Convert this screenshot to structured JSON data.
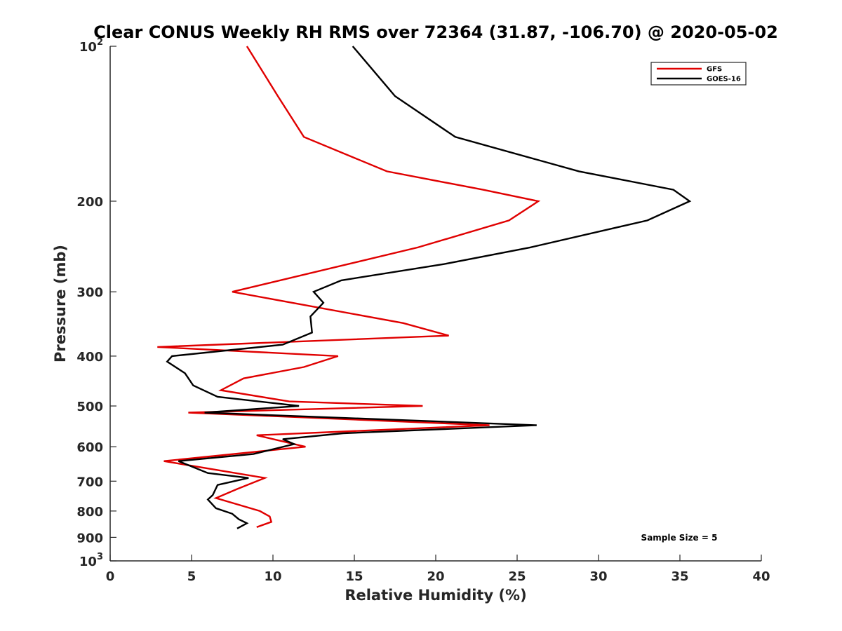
{
  "chart_data": {
    "type": "line",
    "title": "Clear CONUS Weekly RH RMS over 72364 (31.87, -106.70) @ 2020-05-02",
    "xlabel": "Relative Humidity (%)",
    "ylabel": "Pressure (mb)",
    "xlim": [
      0,
      40
    ],
    "ylim": [
      100,
      1000
    ],
    "y_scale": "log",
    "y_direction": "reversed",
    "x_ticks": [
      "0",
      "5",
      "10",
      "15",
      "20",
      "25",
      "30",
      "35",
      "40"
    ],
    "y_ticks": [
      {
        "value": 100,
        "label": "10",
        "exp": "2"
      },
      {
        "value": 200,
        "label": "200",
        "exp": ""
      },
      {
        "value": 300,
        "label": "300",
        "exp": ""
      },
      {
        "value": 400,
        "label": "400",
        "exp": ""
      },
      {
        "value": 500,
        "label": "500",
        "exp": ""
      },
      {
        "value": 600,
        "label": "600",
        "exp": ""
      },
      {
        "value": 700,
        "label": "700",
        "exp": ""
      },
      {
        "value": 800,
        "label": "800",
        "exp": ""
      },
      {
        "value": 900,
        "label": "900",
        "exp": ""
      },
      {
        "value": 1000,
        "label": "10",
        "exp": "3"
      }
    ],
    "legend_position": "top-right",
    "grid": false,
    "annotation": "Sample Size = 5",
    "series": [
      {
        "name": "GFS",
        "color": "#e00000",
        "points": [
          [
            8.4,
            100
          ],
          [
            10.3,
            125
          ],
          [
            11.9,
            150
          ],
          [
            17.0,
            175
          ],
          [
            22.9,
            190
          ],
          [
            26.3,
            200
          ],
          [
            24.5,
            218
          ],
          [
            18.9,
            246
          ],
          [
            7.5,
            300
          ],
          [
            18.0,
            345
          ],
          [
            20.8,
            365
          ],
          [
            2.9,
            384
          ],
          [
            14.0,
            400
          ],
          [
            11.9,
            420
          ],
          [
            8.2,
            442
          ],
          [
            6.8,
            466
          ],
          [
            11.0,
            490
          ],
          [
            19.2,
            500
          ],
          [
            4.8,
            515
          ],
          [
            23.3,
            545
          ],
          [
            9.0,
            570
          ],
          [
            12.0,
            600
          ],
          [
            3.3,
            640
          ],
          [
            9.5,
            690
          ],
          [
            7.8,
            725
          ],
          [
            6.5,
            755
          ],
          [
            9.2,
            800
          ],
          [
            9.8,
            820
          ],
          [
            9.9,
            840
          ],
          [
            9.0,
            860
          ]
        ]
      },
      {
        "name": "GOES-16",
        "color": "#000000",
        "points": [
          [
            14.9,
            100
          ],
          [
            17.5,
            125
          ],
          [
            21.2,
            150
          ],
          [
            28.8,
            175
          ],
          [
            34.6,
            190
          ],
          [
            35.6,
            200
          ],
          [
            33.0,
            218
          ],
          [
            25.8,
            246
          ],
          [
            20.5,
            265
          ],
          [
            14.2,
            285
          ],
          [
            12.5,
            300
          ],
          [
            13.1,
            315
          ],
          [
            12.3,
            335
          ],
          [
            12.4,
            360
          ],
          [
            10.6,
            380
          ],
          [
            3.8,
            400
          ],
          [
            3.5,
            410
          ],
          [
            4.6,
            432
          ],
          [
            5.1,
            456
          ],
          [
            6.6,
            480
          ],
          [
            11.6,
            500
          ],
          [
            5.8,
            515
          ],
          [
            26.2,
            545
          ],
          [
            14.3,
            565
          ],
          [
            10.6,
            580
          ],
          [
            11.3,
            593
          ],
          [
            8.8,
            620
          ],
          [
            4.2,
            640
          ],
          [
            6.0,
            675
          ],
          [
            8.5,
            690
          ],
          [
            6.6,
            712
          ],
          [
            6.3,
            745
          ],
          [
            6.0,
            760
          ],
          [
            6.5,
            790
          ],
          [
            7.5,
            810
          ],
          [
            7.9,
            830
          ],
          [
            8.4,
            845
          ],
          [
            7.8,
            865
          ]
        ]
      }
    ]
  }
}
